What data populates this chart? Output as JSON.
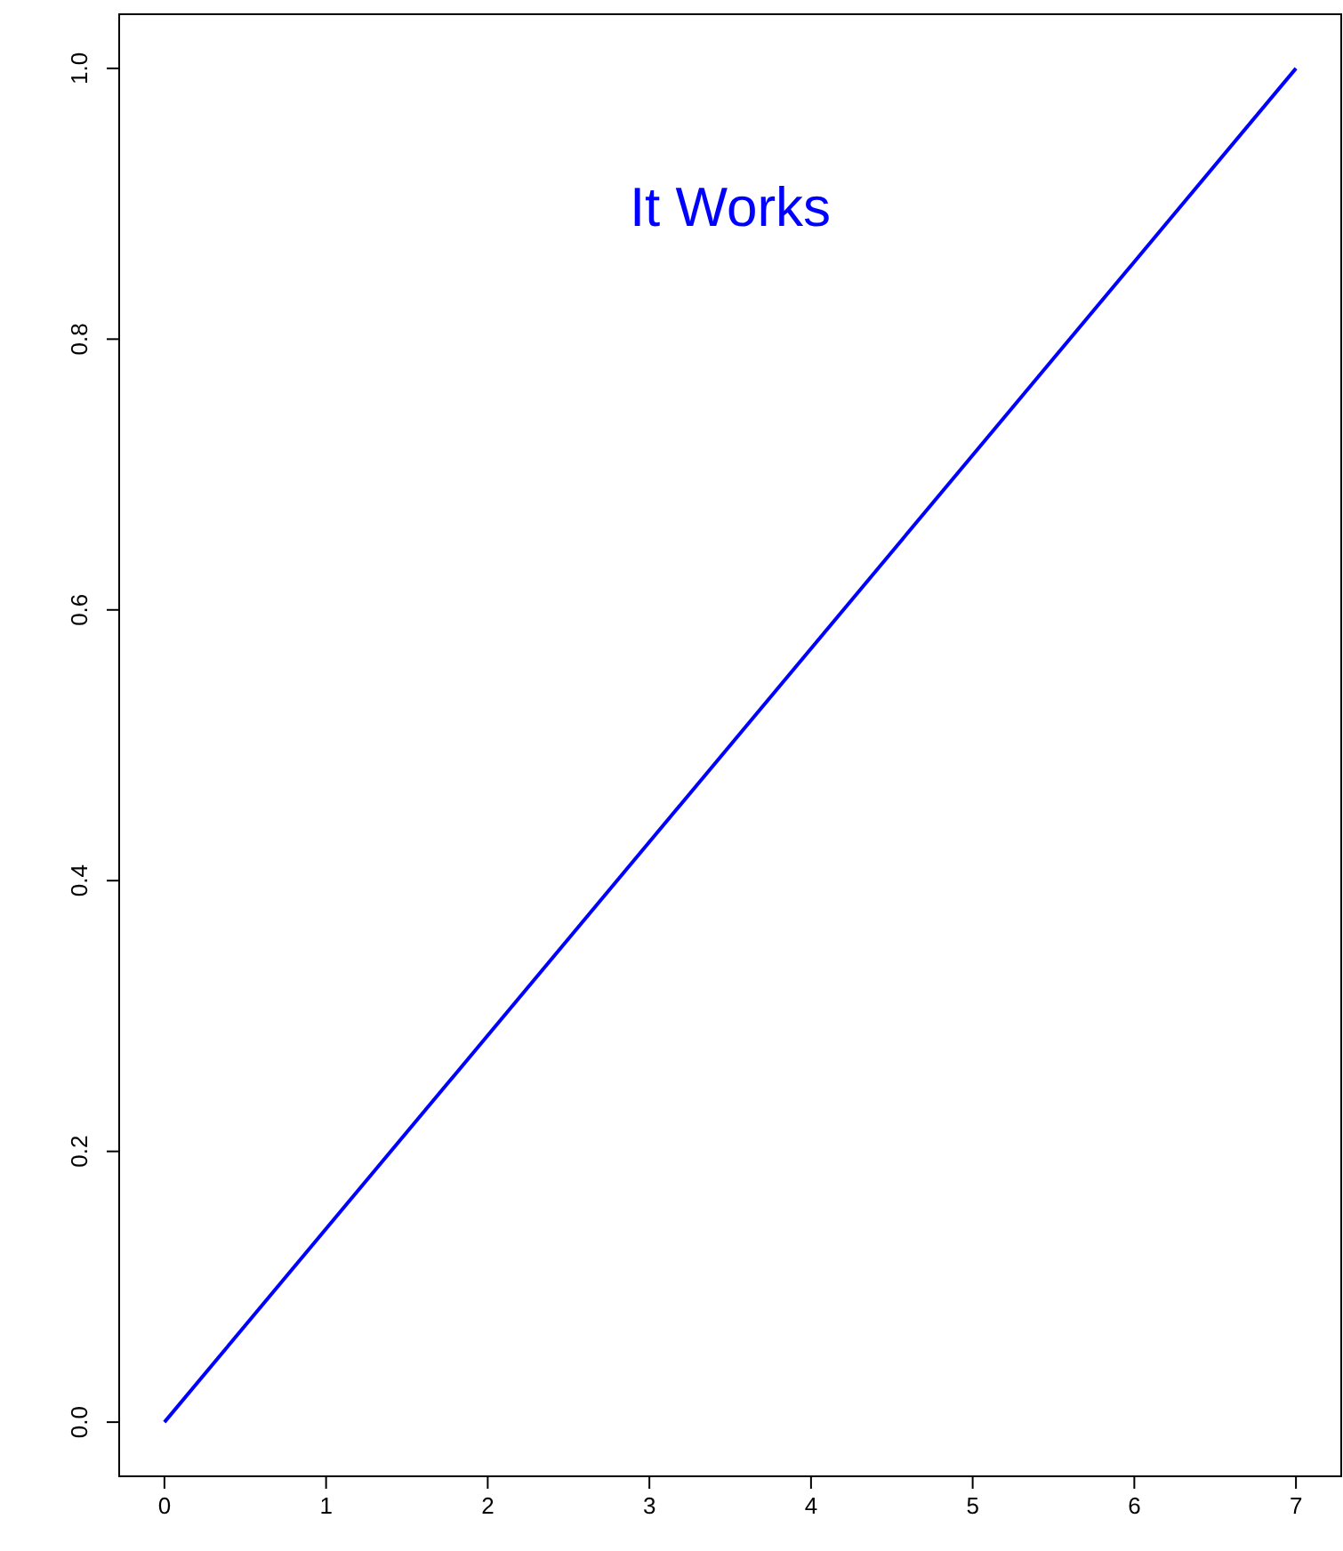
{
  "chart_data": {
    "type": "line",
    "x": [
      0,
      7
    ],
    "series": [
      {
        "color": "#0000ff",
        "values": [
          0,
          1
        ]
      }
    ],
    "xlim": [
      -0.28,
      7.28
    ],
    "xticks": [
      0,
      1,
      2,
      3,
      4,
      5,
      6,
      7
    ],
    "ylim": [
      -0.04,
      1.04
    ],
    "yticks": [
      {
        "value": 0,
        "label": "0.0"
      },
      {
        "value": 0.2,
        "label": "0.2"
      },
      {
        "value": 0.4,
        "label": "0.4"
      },
      {
        "value": 0.6,
        "label": "0.6"
      },
      {
        "value": 0.8,
        "label": "0.8"
      },
      {
        "value": 1,
        "label": "1.0"
      }
    ],
    "annotations": [
      "It Works"
    ],
    "marker": "none",
    "line_style": "solid"
  }
}
